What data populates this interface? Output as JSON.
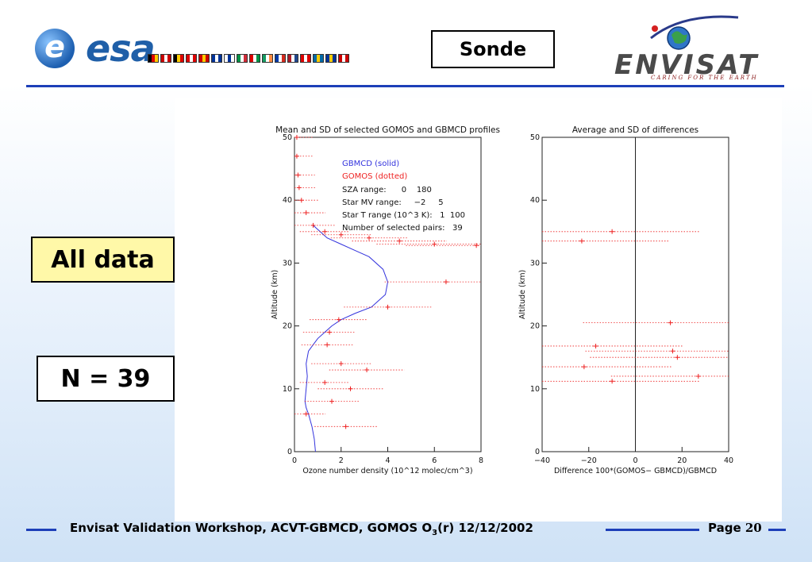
{
  "header": {
    "esa_logo_text": "esa",
    "envisat_logo_text": "ENVISAT",
    "envisat_tagline": "CARING FOR THE EARTH",
    "sonde_label": "Sonde",
    "flag_colors": [
      [
        "#000",
        "#d00",
        "#ffcc00"
      ],
      [
        "#c00",
        "#fff",
        "#c00"
      ],
      [
        "#000",
        "#ffcc00",
        "#d00"
      ],
      [
        "#d00",
        "#fff",
        "#d00"
      ],
      [
        "#c00",
        "#ffcc00",
        "#c00"
      ],
      [
        "#003399",
        "#fff",
        "#003399"
      ],
      [
        "#fff",
        "#003399",
        "#fff"
      ],
      [
        "#009246",
        "#fff",
        "#ce2b37"
      ],
      [
        "#d00",
        "#fff",
        "#009246"
      ],
      [
        "#169b62",
        "#fff",
        "#ff883e"
      ],
      [
        "#0039a6",
        "#fff",
        "#d52b1e"
      ],
      [
        "#ae1c28",
        "#fff",
        "#21468b"
      ],
      [
        "#d00",
        "#fff",
        "#d00"
      ],
      [
        "#006aa7",
        "#fecc00",
        "#006aa7"
      ],
      [
        "#003399",
        "#fc0",
        "#003399"
      ],
      [
        "#c00",
        "#fff",
        "#c00"
      ]
    ]
  },
  "labels": {
    "all_data": "All data",
    "n_count": "N = 39"
  },
  "footer": {
    "prefix": "Envisat Validation Workshop, ACVT-GBMCD,  GOMOS O",
    "subscript": "3",
    "suffix": "(r) 12/12/2002",
    "page_label": "Page ",
    "page_number": "20"
  },
  "chart_data": [
    {
      "type": "line",
      "title": "Mean and SD of selected GOMOS and GBMCD profiles",
      "xlabel": "Ozone number density (10^12 molec/cm^3)",
      "ylabel": "Altitude (km)",
      "xlim": [
        0,
        8
      ],
      "ylim": [
        0,
        50
      ],
      "xticks": [
        "0",
        "2",
        "4",
        "6",
        "8"
      ],
      "yticks": [
        "0",
        "10",
        "20",
        "30",
        "40",
        "50"
      ],
      "legend": [
        {
          "text": "GBMCD   (solid)",
          "color": "#3333dd"
        },
        {
          "text": "GOMOS   (dotted)",
          "color": "#ee2222"
        }
      ],
      "annotations": [
        "SZA range:      0    180",
        "Star MV range:     −2     5",
        "Star T range (10^3 K):   1  100",
        "Number of selected pairs:   39"
      ],
      "series": [
        {
          "name": "GBMCD",
          "style": "solid",
          "color": "#3333dd",
          "x": [
            0.9,
            0.85,
            0.75,
            0.6,
            0.5,
            0.45,
            0.5,
            0.55,
            0.5,
            0.6,
            0.8,
            1.0,
            1.3,
            1.6,
            2.0,
            2.6,
            3.3,
            3.9,
            4.0,
            3.8,
            3.2,
            2.6,
            2.0,
            1.4,
            1.1,
            0.8
          ],
          "y": [
            0,
            2,
            4,
            6,
            7,
            8,
            10,
            12,
            14,
            16,
            17,
            18,
            19,
            20,
            21,
            22,
            23,
            25,
            27,
            29,
            31,
            32,
            33,
            34,
            35,
            36
          ]
        },
        {
          "name": "GOMOS",
          "style": "dotted",
          "color": "#ee2222",
          "x": [
            0.1,
            0.1,
            0.15,
            0.2,
            0.3,
            0.5,
            0.8,
            1.3,
            2.0,
            3.2,
            4.5,
            6.0,
            7.8,
            6.5,
            4.0,
            1.9,
            1.5,
            1.4,
            2.0,
            3.1,
            1.3,
            2.4,
            1.6,
            0.5,
            2.2
          ],
          "y": [
            50,
            47,
            44,
            42,
            40,
            38,
            36,
            35,
            34.5,
            34,
            33.5,
            33,
            32.8,
            27,
            23,
            21,
            19,
            17,
            14,
            13,
            11,
            10,
            8,
            6,
            4
          ]
        }
      ]
    },
    {
      "type": "line",
      "title": "Average and SD of differences",
      "xlabel": "Difference 100*(GOMOS− GBMCD)/GBMCD",
      "ylabel": "Altitude (km)",
      "xlim": [
        -40,
        40
      ],
      "ylim": [
        0,
        50
      ],
      "xticks": [
        "−40",
        "−20",
        "0",
        "20",
        "40"
      ],
      "yticks": [
        "0",
        "10",
        "20",
        "30",
        "40",
        "50"
      ],
      "series": [
        {
          "name": "Average difference",
          "style": "dotted",
          "color": "#ee2222",
          "x": [
            -10,
            -23,
            15,
            -17,
            16,
            -22,
            -10,
            27,
            18
          ],
          "y": [
            35,
            33.5,
            20.5,
            16.8,
            16,
            13.5,
            11.2,
            12,
            15
          ]
        }
      ]
    }
  ]
}
